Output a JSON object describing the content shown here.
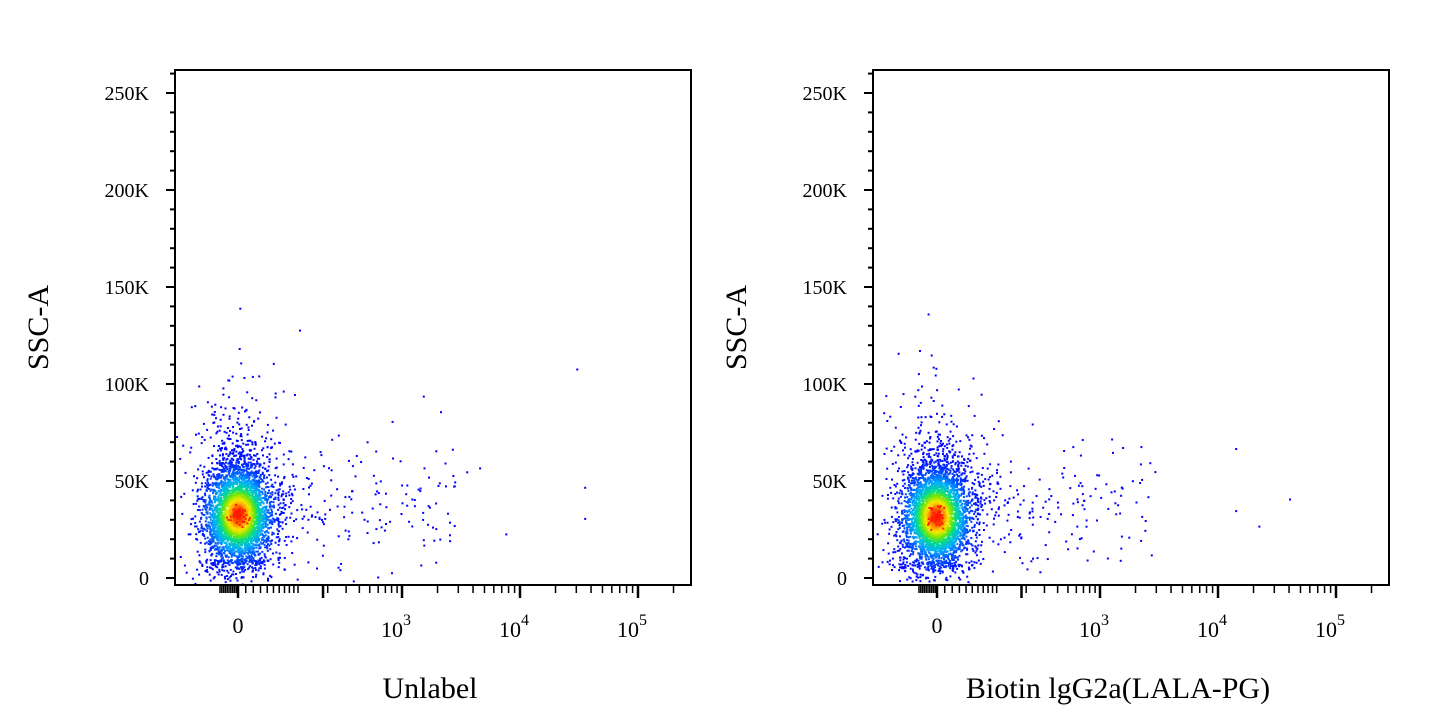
{
  "chart_data": [
    {
      "type": "scatter",
      "style": "density pseudocolor dot plot",
      "xlabel": "Unlabel",
      "ylabel": "SSC-A",
      "x_scale": "biexponential",
      "xlim": [
        -300,
        150000
      ],
      "ylim": [
        -5000,
        262144
      ],
      "y_ticks": [
        {
          "value": 0,
          "label": "0"
        },
        {
          "value": 50000,
          "label": "50K"
        },
        {
          "value": 100000,
          "label": "100K"
        },
        {
          "value": 150000,
          "label": "150K"
        },
        {
          "value": 200000,
          "label": "200K"
        },
        {
          "value": 250000,
          "label": "250K"
        }
      ],
      "x_ticks": [
        {
          "value": 0,
          "label": "0"
        },
        {
          "value": 1000,
          "label": "10",
          "exp": "3"
        },
        {
          "value": 10000,
          "label": "10",
          "exp": "4"
        },
        {
          "value": 100000,
          "label": "10",
          "exp": "5"
        }
      ],
      "population": {
        "center_x": -5,
        "center_y": 33000,
        "peak_color": "#ff1a00"
      },
      "outliers": [
        {
          "x": 30000,
          "y": 108000
        },
        {
          "x": 35000,
          "y": 47000
        },
        {
          "x": 35000,
          "y": 31000
        },
        {
          "x": 4500,
          "y": 57000
        },
        {
          "x": 2100,
          "y": 86000
        },
        {
          "x": 1500,
          "y": 94000
        },
        {
          "x": 800,
          "y": 81000
        },
        {
          "x": 7500,
          "y": 23000
        },
        {
          "x": 2500,
          "y": 29000
        },
        {
          "x": 1500,
          "y": 20000
        },
        {
          "x": 3500,
          "y": 55000
        },
        {
          "x": 2000,
          "y": 48000
        },
        {
          "x": 1200,
          "y": 41000
        },
        {
          "x": 700,
          "y": 37000
        }
      ],
      "grid": false
    },
    {
      "type": "scatter",
      "style": "density pseudocolor dot plot",
      "xlabel": "Biotin lgG2a(LALA-PG)",
      "ylabel": "SSC-A",
      "x_scale": "biexponential",
      "xlim": [
        -300,
        150000
      ],
      "ylim": [
        -5000,
        262144
      ],
      "y_ticks": [
        {
          "value": 0,
          "label": "0"
        },
        {
          "value": 50000,
          "label": "50K"
        },
        {
          "value": 100000,
          "label": "100K"
        },
        {
          "value": 150000,
          "label": "150K"
        },
        {
          "value": 200000,
          "label": "200K"
        },
        {
          "value": 250000,
          "label": "250K"
        }
      ],
      "x_ticks": [
        {
          "value": 0,
          "label": "0"
        },
        {
          "value": 1000,
          "label": "10",
          "exp": "3"
        },
        {
          "value": 10000,
          "label": "10",
          "exp": "4"
        },
        {
          "value": 100000,
          "label": "10",
          "exp": "5"
        }
      ],
      "population": {
        "center_x": -15,
        "center_y": 32000,
        "peak_color": "#ff1a00"
      },
      "outliers": [
        {
          "x": 14000,
          "y": 67000
        },
        {
          "x": 14000,
          "y": 35000
        },
        {
          "x": 22000,
          "y": 27000
        },
        {
          "x": 40000,
          "y": 41000
        },
        {
          "x": 2200,
          "y": 68000
        },
        {
          "x": 700,
          "y": 36000
        },
        {
          "x": 550,
          "y": 68000
        },
        {
          "x": 450,
          "y": 66000
        },
        {
          "x": 600,
          "y": 27000
        }
      ],
      "grid": false
    }
  ]
}
